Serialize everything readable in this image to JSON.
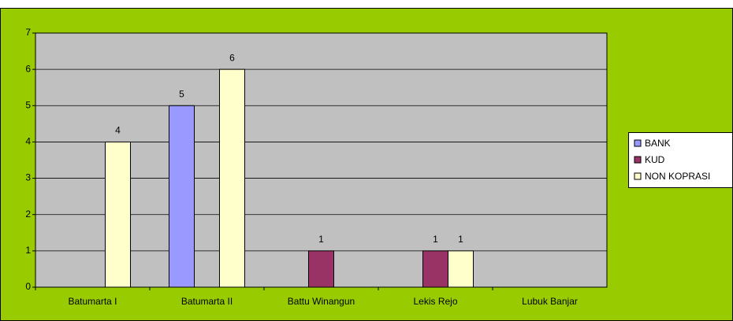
{
  "chart_data": {
    "type": "bar",
    "categories": [
      "Batumarta I",
      "Batumarta II",
      "Battu Winangun",
      "Lekis Rejo",
      "Lubuk Banjar"
    ],
    "series": [
      {
        "name": "BANK",
        "color": "#9999ff",
        "values": [
          null,
          5,
          null,
          null,
          null
        ]
      },
      {
        "name": "KUD",
        "color": "#993366",
        "values": [
          null,
          null,
          1,
          1,
          null
        ]
      },
      {
        "name": "NON KOPRASI",
        "color": "#ffffcc",
        "values": [
          4,
          6,
          null,
          1,
          null
        ]
      }
    ],
    "ylim": [
      0,
      7
    ],
    "yticks": [
      0,
      1,
      2,
      3,
      4,
      5,
      6,
      7
    ],
    "grid": true,
    "legend": "right"
  }
}
